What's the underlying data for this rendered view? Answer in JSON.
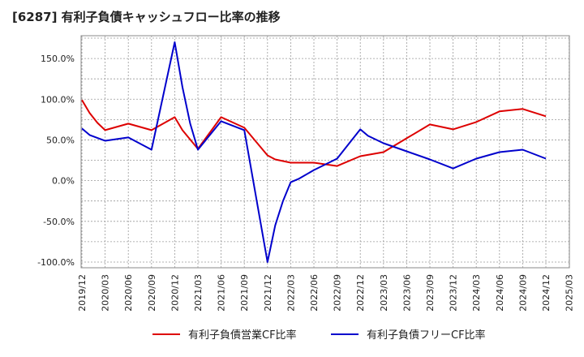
{
  "chart_data": {
    "type": "line",
    "title": "[6287]  有利子負債キャッシュフロー比率の推移",
    "xlabel": "",
    "ylabel": "",
    "ylim": [
      -107,
      178
    ],
    "yticks": [
      150,
      100,
      50,
      0,
      -50,
      -100
    ],
    "ytick_labels": [
      "150.0%",
      "100.0%",
      "50.0%",
      "0.0%",
      "-50.0%",
      "-100.0%"
    ],
    "xticks": [
      "2019/12",
      "2020/03",
      "2020/06",
      "2020/09",
      "2020/12",
      "2021/03",
      "2021/06",
      "2021/09",
      "2021/12",
      "2022/03",
      "2022/06",
      "2022/09",
      "2022/12",
      "2023/03",
      "2023/06",
      "2023/09",
      "2023/12",
      "2024/03",
      "2024/06",
      "2024/09",
      "2024/12",
      "2025/03"
    ],
    "grid": true,
    "legend_position": "bottom",
    "series": [
      {
        "name": "有利子負債営業CF比率",
        "color": "#dd0000",
        "points": [
          [
            "2019/12",
            99
          ],
          [
            "2020/01",
            83
          ],
          [
            "2020/02",
            71
          ],
          [
            "2020/03",
            62
          ],
          [
            "2020/06",
            70
          ],
          [
            "2020/09",
            62
          ],
          [
            "2020/12",
            78
          ],
          [
            "2021/01",
            62
          ],
          [
            "2021/03",
            39
          ],
          [
            "2021/06",
            78
          ],
          [
            "2021/09",
            65
          ],
          [
            "2021/12",
            31
          ],
          [
            "2022/01",
            26
          ],
          [
            "2022/03",
            22
          ],
          [
            "2022/06",
            22
          ],
          [
            "2022/09",
            18
          ],
          [
            "2022/12",
            30
          ],
          [
            "2023/03",
            35
          ],
          [
            "2023/06",
            52
          ],
          [
            "2023/09",
            69
          ],
          [
            "2023/12",
            63
          ],
          [
            "2024/03",
            72
          ],
          [
            "2024/06",
            85
          ],
          [
            "2024/09",
            88
          ],
          [
            "2024/12",
            79
          ]
        ]
      },
      {
        "name": "有利子負債フリーCF比率",
        "color": "#0000cc",
        "points": [
          [
            "2019/12",
            64
          ],
          [
            "2020/01",
            56
          ],
          [
            "2020/03",
            49
          ],
          [
            "2020/06",
            53
          ],
          [
            "2020/09",
            38
          ],
          [
            "2020/12",
            170
          ],
          [
            "2021/01",
            115
          ],
          [
            "2021/02",
            70
          ],
          [
            "2021/03",
            38
          ],
          [
            "2021/06",
            73
          ],
          [
            "2021/09",
            62
          ],
          [
            "2021/12",
            -100
          ],
          [
            "2022/01",
            -55
          ],
          [
            "2022/02",
            -25
          ],
          [
            "2022/03",
            -2
          ],
          [
            "2022/04",
            2
          ],
          [
            "2022/06",
            13
          ],
          [
            "2022/09",
            27
          ],
          [
            "2022/12",
            63
          ],
          [
            "2023/01",
            55
          ],
          [
            "2023/03",
            46
          ],
          [
            "2023/06",
            36
          ],
          [
            "2023/09",
            26
          ],
          [
            "2023/12",
            15
          ],
          [
            "2024/03",
            27
          ],
          [
            "2024/06",
            35
          ],
          [
            "2024/09",
            38
          ],
          [
            "2024/12",
            27
          ]
        ]
      }
    ]
  }
}
